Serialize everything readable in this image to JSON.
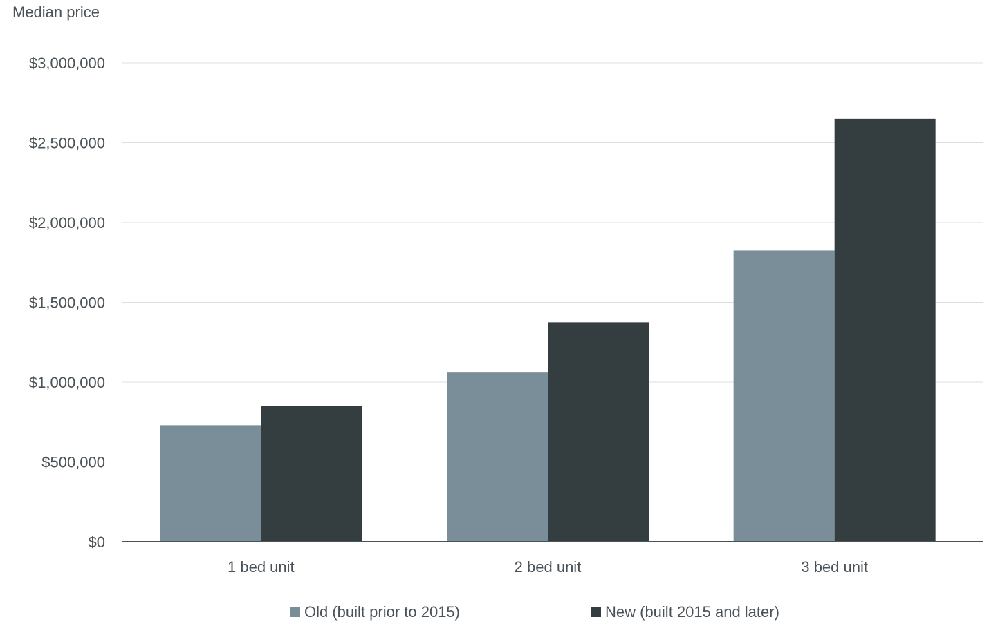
{
  "chart_data": {
    "type": "bar",
    "ylabel": "Median price",
    "xlabel": "",
    "categories": [
      "1 bed unit",
      "2 bed unit",
      "3 bed unit"
    ],
    "series": [
      {
        "name": "Old (built prior to 2015)",
        "color": "#7a8e9a",
        "values": [
          730000,
          1060000,
          1825000
        ]
      },
      {
        "name": "New (built 2015 and later)",
        "color": "#343e41",
        "values": [
          850000,
          1375000,
          2650000
        ]
      }
    ],
    "ylim": [
      0,
      3000000
    ],
    "yticks": [
      {
        "value": 0,
        "label": "$0"
      },
      {
        "value": 500000,
        "label": "$500,000"
      },
      {
        "value": 1000000,
        "label": "$1,000,000"
      },
      {
        "value": 1500000,
        "label": "$1,500,000"
      },
      {
        "value": 2000000,
        "label": "$2,000,000"
      },
      {
        "value": 2500000,
        "label": "$2,500,000"
      },
      {
        "value": 3000000,
        "label": "$3,000,000"
      }
    ],
    "grid": true,
    "legend_position": "bottom"
  }
}
